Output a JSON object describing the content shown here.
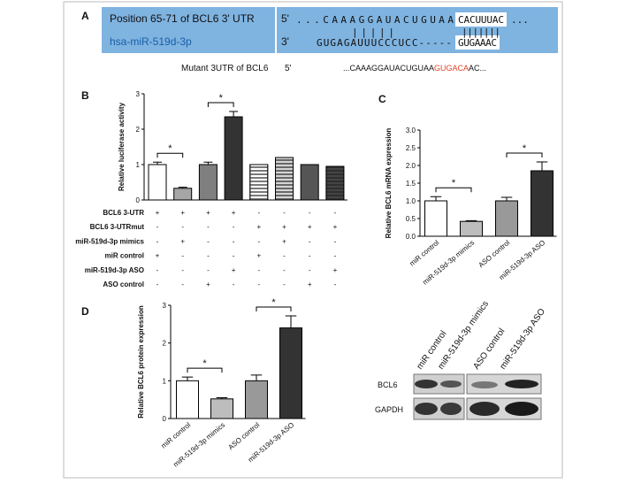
{
  "panel_a": {
    "label": "A",
    "utr_label": "Position 65-71 of BCL6 3' UTR",
    "mirna_label": "hsa-miR-519d-3p",
    "utr_end": "5'",
    "mirna_end": "3'",
    "utr_seq": "...CAAAGGAUACUGUAA",
    "utr_site": "CACUUUAC",
    "utr_tail": "...",
    "pairing": [
      "|||||",
      "|||||||"
    ],
    "mirna_seq": "GUGAGAUUUCCCUCC-----",
    "mirna_site": "GUGAAAC",
    "mutant_label": "Mutant 3UTR of BCL6",
    "mutant_end": "5'",
    "mutant_seq": "...CAAAGGAUACUGUAA",
    "mutant_site": "GUGACA",
    "mutant_tail": "AC..."
  },
  "chart_data": [
    {
      "type": "bar",
      "panel": "B",
      "y_label": "Relative luciferase activity",
      "values": [
        1.0,
        0.33,
        1.0,
        2.35,
        1.0,
        1.2,
        1.0,
        0.95
      ],
      "errors": [
        0.07,
        0.03,
        0.07,
        0.15,
        null,
        null,
        null,
        null
      ],
      "colors": [
        "#ffffff",
        "#a6a6a6",
        "#7f7f7f",
        "#333333",
        "#ffffff",
        "#d4d4d4",
        "#555555",
        "#444444"
      ],
      "hatch": [
        false,
        false,
        false,
        false,
        true,
        true,
        false,
        true
      ],
      "ylim": [
        0,
        3
      ],
      "yticks": [
        0,
        1,
        2,
        3
      ],
      "significance": [
        {
          "label": "*",
          "bars": [
            0,
            1
          ]
        },
        {
          "label": "*",
          "bars": [
            2,
            3
          ]
        }
      ],
      "conditions": [
        {
          "name": "BCL6 3-UTR",
          "marks": [
            "+",
            "+",
            "+",
            "+",
            "-",
            "-",
            "-",
            "-"
          ]
        },
        {
          "name": "BCL6 3-UTRmut",
          "marks": [
            "-",
            "-",
            "-",
            "-",
            "+",
            "+",
            "+",
            "+"
          ]
        },
        {
          "name": "miR-519d-3p mimics",
          "marks": [
            "-",
            "+",
            "-",
            "-",
            "-",
            "+",
            "-",
            "-"
          ]
        },
        {
          "name": "miR control",
          "marks": [
            "+",
            "-",
            "-",
            "-",
            "+",
            "-",
            "-",
            "-"
          ]
        },
        {
          "name": "miR-519d-3p ASO",
          "marks": [
            "-",
            "-",
            "-",
            "+",
            "-",
            "-",
            "-",
            "+"
          ]
        },
        {
          "name": "ASO control",
          "marks": [
            "-",
            "-",
            "+",
            "-",
            "-",
            "-",
            "+",
            "-"
          ]
        }
      ]
    },
    {
      "type": "bar",
      "panel": "C",
      "y_label": "Relative BCL6 mRNA expression",
      "categories": [
        "miR control",
        "miR-519d-3p mimics",
        "ASO control",
        "miR-519d-3p ASO"
      ],
      "values": [
        1.0,
        0.42,
        1.0,
        1.85
      ],
      "errors": [
        0.12,
        0.02,
        0.1,
        0.25
      ],
      "colors": [
        "#ffffff",
        "#bdbdbd",
        "#999999",
        "#333333"
      ],
      "ylim": [
        0,
        3
      ],
      "yticks": [
        {
          "value": 0,
          "label": "0.0"
        },
        0.5,
        {
          "value": 1,
          "label": "1.0"
        },
        1.5,
        {
          "value": 2,
          "label": "2.0"
        },
        2.5,
        {
          "value": 3,
          "label": "3.0"
        }
      ],
      "significance": [
        {
          "label": "*",
          "bars": [
            0,
            1
          ]
        },
        {
          "label": "*",
          "bars": [
            2,
            3
          ]
        }
      ]
    },
    {
      "type": "bar",
      "panel": "D",
      "y_label": "Relative BCL6 protein expression",
      "categories": [
        "miR control",
        "miR-519d-3p mimics",
        "ASO control",
        "miR-519d-3p ASO"
      ],
      "values": [
        1.0,
        0.52,
        1.0,
        2.4
      ],
      "errors": [
        0.1,
        0.03,
        0.15,
        0.32
      ],
      "colors": [
        "#ffffff",
        "#bdbdbd",
        "#999999",
        "#333333"
      ],
      "ylim": [
        0,
        3
      ],
      "yticks": [
        0,
        1,
        2,
        3
      ],
      "significance": [
        {
          "label": "*",
          "bars": [
            0,
            1
          ]
        },
        {
          "label": "*",
          "bars": [
            2,
            3
          ]
        }
      ]
    }
  ],
  "blot": {
    "lanes": [
      "miR control",
      "miR-519d-3p mimics",
      "ASO control",
      "miR-519d-3p ASO"
    ],
    "rows": [
      "BCL6",
      "GAPDH"
    ]
  }
}
